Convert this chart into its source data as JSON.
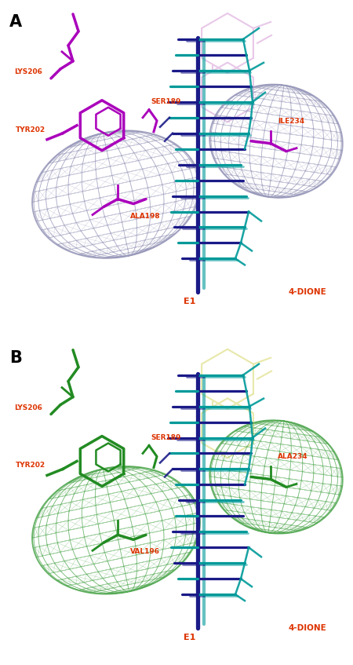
{
  "fig_width": 4.5,
  "fig_height": 8.47,
  "panel_A": {
    "res_color": "#aa00bb",
    "mesh_color": "#9999bb",
    "fade_color": "#e8c8e8",
    "e1_color": "#1a1a88",
    "cyan_color": "#009999",
    "red": "#dd3300",
    "label_left": "ALA198",
    "label_right": "ILE234"
  },
  "panel_B": {
    "res_color": "#228B22",
    "mesh_color": "#55aa55",
    "fade_color": "#e8e8aa",
    "e1_color": "#1a1a88",
    "cyan_color": "#009999",
    "red": "#dd3300",
    "label_left": "VAL196",
    "label_right": "ALA234"
  }
}
